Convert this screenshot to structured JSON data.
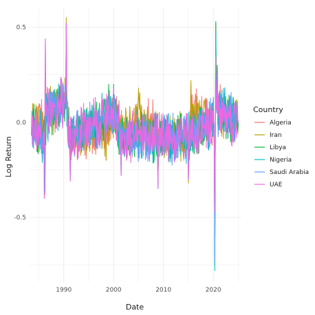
{
  "chart_data": {
    "type": "line",
    "title": "",
    "xlabel": "Date",
    "ylabel": "Log Return",
    "xlim": [
      1983.0,
      2025.5
    ],
    "ylim": [
      -0.84,
      0.6
    ],
    "x_ticks": [
      1990,
      2000,
      2010,
      2020
    ],
    "x_tick_labels": [
      "1990",
      "2000",
      "2010",
      "2020"
    ],
    "y_ticks": [
      -0.5,
      0.0,
      0.5
    ],
    "y_tick_labels": [
      "-0.5",
      "0.0",
      "0.5"
    ],
    "grid": true,
    "legend": {
      "title": "Country",
      "position": "right",
      "entries": [
        "Algeria",
        "Iran",
        "Libya",
        "Nigeria",
        "Saudi Arabia",
        "UAE"
      ]
    },
    "series": [
      {
        "name": "Algeria",
        "color": "#F8766D",
        "points": [
          [
            1983.5,
            -0.07
          ],
          [
            1985.8,
            0.05
          ],
          [
            1986.2,
            -0.38
          ],
          [
            1986.5,
            0.15
          ],
          [
            1990.5,
            0.5
          ],
          [
            1990.9,
            -0.12
          ],
          [
            1991.3,
            -0.28
          ],
          [
            1998.5,
            -0.2
          ],
          [
            2000,
            0.2
          ],
          [
            2001.5,
            -0.25
          ],
          [
            2008.3,
            0.05
          ],
          [
            2008.9,
            -0.33
          ],
          [
            2015,
            -0.3
          ],
          [
            2015.5,
            0.2
          ],
          [
            2020.1,
            0.0
          ],
          [
            2020.3,
            -0.75
          ],
          [
            2020.5,
            0.52
          ],
          [
            2020.8,
            0.3
          ],
          [
            2025,
            0.0
          ]
        ]
      },
      {
        "name": "Iran",
        "color": "#B79F00",
        "points": [
          [
            1983.5,
            -0.05
          ],
          [
            1985.5,
            -0.06
          ],
          [
            1986.2,
            -0.28
          ],
          [
            1986.5,
            0.15
          ],
          [
            1990.5,
            0.55
          ],
          [
            1990.9,
            -0.1
          ],
          [
            1991.3,
            -0.3
          ],
          [
            1998.5,
            -0.2
          ],
          [
            2000,
            0.18
          ],
          [
            2001.5,
            -0.22
          ],
          [
            2005,
            0.18
          ],
          [
            2008.9,
            -0.3
          ],
          [
            2015,
            -0.32
          ],
          [
            2015.5,
            0.22
          ],
          [
            2020.1,
            0.02
          ],
          [
            2020.3,
            -0.6
          ],
          [
            2020.5,
            0.45
          ],
          [
            2020.8,
            0.25
          ],
          [
            2025,
            0.01
          ]
        ]
      },
      {
        "name": "Libya",
        "color": "#00BA38",
        "points": [
          [
            1983.5,
            -0.06
          ],
          [
            1986.2,
            -0.35
          ],
          [
            1986.5,
            0.14
          ],
          [
            1990.5,
            0.52
          ],
          [
            1990.9,
            -0.1
          ],
          [
            1991.3,
            -0.28
          ],
          [
            1999,
            0.2
          ],
          [
            2001.5,
            -0.24
          ],
          [
            2008.9,
            -0.32
          ],
          [
            2015,
            -0.3
          ],
          [
            2020.1,
            0.01
          ],
          [
            2020.3,
            -0.7
          ],
          [
            2020.5,
            0.53
          ],
          [
            2020.8,
            0.3
          ],
          [
            2025,
            0.0
          ]
        ]
      },
      {
        "name": "Nigeria",
        "color": "#00BFC4",
        "points": [
          [
            1983.5,
            -0.07
          ],
          [
            1986.2,
            -0.37
          ],
          [
            1986.5,
            0.15
          ],
          [
            1990.5,
            0.5
          ],
          [
            1990.9,
            -0.12
          ],
          [
            1991.3,
            -0.29
          ],
          [
            2000,
            0.2
          ],
          [
            2001.5,
            -0.28
          ],
          [
            2008.9,
            -0.34
          ],
          [
            2015,
            -0.3
          ],
          [
            2020.1,
            0.0
          ],
          [
            2020.3,
            -0.78
          ],
          [
            2020.5,
            0.48
          ],
          [
            2020.8,
            0.25
          ],
          [
            2025,
            0.0
          ]
        ]
      },
      {
        "name": "Saudi Arabia",
        "color": "#619CFF",
        "points": [
          [
            1983.5,
            -0.07
          ],
          [
            1986.1,
            -0.4
          ],
          [
            1986.3,
            0.43
          ],
          [
            1986.6,
            0.1
          ],
          [
            1990.5,
            0.52
          ],
          [
            1990.9,
            -0.12
          ],
          [
            1991.3,
            -0.3
          ],
          [
            2000,
            0.18
          ],
          [
            2001.5,
            -0.28
          ],
          [
            2008.9,
            -0.34
          ],
          [
            2015,
            -0.3
          ],
          [
            2020.1,
            0.0
          ],
          [
            2020.3,
            -0.73
          ],
          [
            2020.5,
            0.35
          ],
          [
            2020.8,
            0.25
          ],
          [
            2025,
            0.0
          ]
        ]
      },
      {
        "name": "UAE",
        "color": "#F564E3",
        "points": [
          [
            1983.5,
            -0.07
          ],
          [
            1986.1,
            -0.4
          ],
          [
            1986.3,
            0.44
          ],
          [
            1986.6,
            0.1
          ],
          [
            1990.5,
            0.52
          ],
          [
            1990.9,
            -0.12
          ],
          [
            1991.3,
            -0.31
          ],
          [
            2000,
            0.18
          ],
          [
            2001.5,
            -0.28
          ],
          [
            2008.9,
            -0.35
          ],
          [
            2015,
            -0.3
          ],
          [
            2020.1,
            0.0
          ],
          [
            2020.3,
            -0.47
          ],
          [
            2020.5,
            0.34
          ],
          [
            2020.8,
            0.22
          ],
          [
            2025,
            0.0
          ]
        ]
      }
    ]
  }
}
